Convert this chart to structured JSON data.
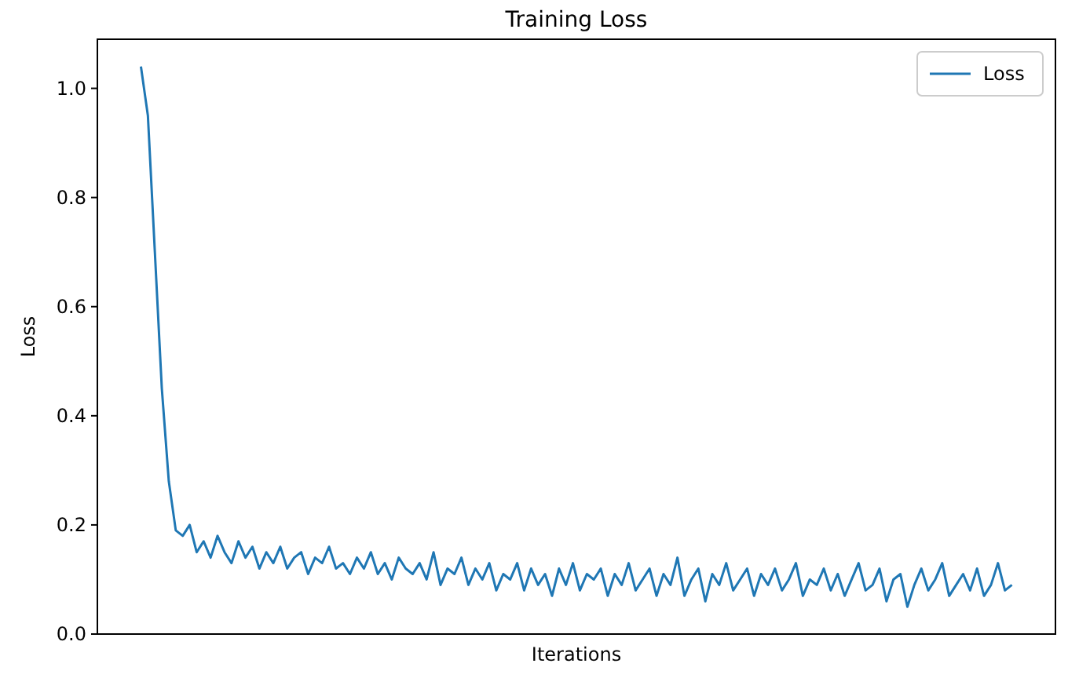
{
  "chart_data": {
    "type": "line",
    "title": "Training Loss",
    "xlabel": "Iterations",
    "ylabel": "Loss",
    "categories": [
      null,
      null,
      null,
      null,
      null,
      null,
      null,
      null,
      null,
      null,
      null,
      null,
      null,
      null,
      null,
      null,
      null,
      null,
      null,
      null,
      null,
      null,
      null,
      null,
      null,
      null,
      null,
      null,
      null,
      null,
      null,
      null,
      null,
      null,
      null,
      null,
      null,
      null,
      null,
      null,
      null,
      null,
      null,
      null,
      null,
      null,
      null,
      null,
      null,
      null,
      null,
      null,
      null,
      null,
      null,
      null,
      null,
      null,
      null,
      null,
      null,
      null,
      null,
      null,
      null,
      null,
      null,
      null,
      null,
      null,
      null,
      null,
      null,
      null,
      null,
      null,
      null,
      null,
      null,
      null,
      null,
      null,
      null,
      null,
      null,
      null,
      null,
      null,
      null,
      null,
      null,
      null,
      null,
      null,
      null,
      null,
      null,
      null,
      null,
      null,
      null,
      null,
      null,
      null,
      null,
      null,
      null,
      null,
      null,
      null,
      null,
      null,
      null,
      null,
      null,
      null,
      null,
      null,
      null,
      null,
      null,
      null,
      null,
      null,
      null,
      null
    ],
    "series": [
      {
        "name": "Loss",
        "color": "#1f77b4",
        "values": [
          1.04,
          0.95,
          0.7,
          0.45,
          0.28,
          0.19,
          0.18,
          0.2,
          0.15,
          0.17,
          0.14,
          0.18,
          0.15,
          0.13,
          0.17,
          0.14,
          0.16,
          0.12,
          0.15,
          0.13,
          0.16,
          0.12,
          0.14,
          0.15,
          0.11,
          0.14,
          0.13,
          0.16,
          0.12,
          0.13,
          0.11,
          0.14,
          0.12,
          0.15,
          0.11,
          0.13,
          0.1,
          0.14,
          0.12,
          0.11,
          0.13,
          0.1,
          0.15,
          0.09,
          0.12,
          0.11,
          0.14,
          0.09,
          0.12,
          0.1,
          0.13,
          0.08,
          0.11,
          0.1,
          0.13,
          0.08,
          0.12,
          0.09,
          0.11,
          0.07,
          0.12,
          0.09,
          0.13,
          0.08,
          0.11,
          0.1,
          0.12,
          0.07,
          0.11,
          0.09,
          0.13,
          0.08,
          0.1,
          0.12,
          0.07,
          0.11,
          0.09,
          0.14,
          0.07,
          0.1,
          0.12,
          0.06,
          0.11,
          0.09,
          0.13,
          0.08,
          0.1,
          0.12,
          0.07,
          0.11,
          0.09,
          0.12,
          0.08,
          0.1,
          0.13,
          0.07,
          0.1,
          0.09,
          0.12,
          0.08,
          0.11,
          0.07,
          0.1,
          0.13,
          0.08,
          0.09,
          0.12,
          0.06,
          0.1,
          0.11,
          0.05,
          0.09,
          0.12,
          0.08,
          0.1,
          0.13,
          0.07,
          0.09,
          0.11,
          0.08,
          0.12,
          0.07,
          0.09,
          0.13,
          0.08,
          0.09
        ]
      }
    ],
    "ylim": [
      0,
      1.09
    ],
    "yticks": [
      {
        "value": 0,
        "label": "0.0"
      },
      {
        "value": 0.2,
        "label": "0.2"
      },
      {
        "value": 0.4,
        "label": "0.4"
      },
      {
        "value": 0.6,
        "label": "0.6"
      },
      {
        "value": 0.8,
        "label": "0.8"
      },
      {
        "value": 1,
        "label": "1.0"
      }
    ],
    "tick_labels": "y",
    "legend": "top right",
    "grid": false
  }
}
